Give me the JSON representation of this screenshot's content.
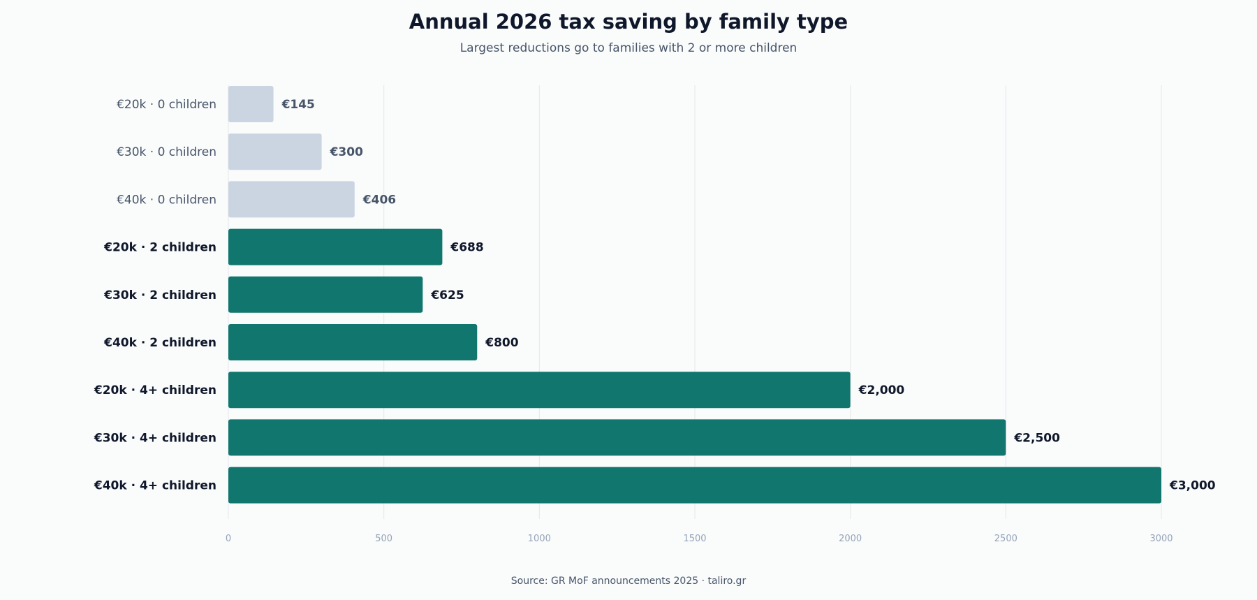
{
  "chart_data": {
    "type": "bar",
    "orientation": "horizontal",
    "title": "Annual 2026 tax saving by family type",
    "subtitle": "Largest reductions go to families with 2 or more children",
    "source": "Source: GR MoF announcements 2025 · taliro.gr",
    "categories": [
      "€20k · 0 children",
      "€30k · 0 children",
      "€40k · 0 children",
      "€20k · 2 children",
      "€30k · 2 children",
      "€40k · 2 children",
      "€20k · 4+ children",
      "€30k · 4+ children",
      "€40k · 4+ children"
    ],
    "values": [
      145,
      300,
      406,
      688,
      625,
      800,
      2000,
      2500,
      3000
    ],
    "value_labels": [
      "€145",
      "€300",
      "€406",
      "€688",
      "€625",
      "€800",
      "€2,000",
      "€2,500",
      "€3,000"
    ],
    "highlighted": [
      false,
      false,
      false,
      true,
      true,
      true,
      true,
      true,
      true
    ],
    "xlim": [
      0,
      3000
    ],
    "xticks": [
      0,
      500,
      1000,
      1500,
      2000,
      2500,
      3000
    ],
    "xlabel": "",
    "ylabel": "",
    "grid": "vertical",
    "legend": "none",
    "colors": {
      "muted_bar": "#cbd5e1",
      "highlight_bar": "#10766e",
      "muted_text": "#475569",
      "highlight_text": "#0f172a",
      "grid": "#e5e7eb",
      "tick_text": "#94a3b8"
    }
  }
}
